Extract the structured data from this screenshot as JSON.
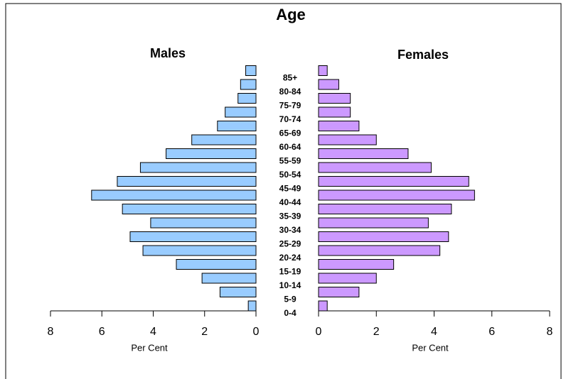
{
  "chart_data": {
    "type": "pyramid",
    "title": "Age",
    "categories": [
      "0-4",
      "5-9",
      "10-14",
      "15-19",
      "20-24",
      "25-29",
      "30-34",
      "35-39",
      "40-44",
      "45-49",
      "50-54",
      "55-59",
      "60-64",
      "65-69",
      "70-74",
      "75-79",
      "80-84",
      "85+"
    ],
    "series": [
      {
        "name": "Males",
        "color": "#99ccff",
        "values": [
          0.3,
          1.4,
          2.1,
          3.1,
          4.4,
          4.9,
          4.1,
          5.2,
          6.4,
          5.4,
          4.5,
          3.5,
          2.5,
          1.5,
          1.2,
          0.7,
          0.6,
          0.4
        ]
      },
      {
        "name": "Females",
        "color": "#cc99ff",
        "values": [
          0.3,
          1.4,
          2.0,
          2.6,
          4.2,
          4.5,
          3.8,
          4.6,
          5.4,
          5.2,
          3.9,
          3.1,
          2.0,
          1.4,
          1.1,
          1.1,
          0.7,
          0.3
        ]
      }
    ],
    "xlabel": "Per Cent",
    "xlim": [
      0,
      8
    ],
    "xticks": [
      0,
      2,
      4,
      6,
      8
    ]
  }
}
